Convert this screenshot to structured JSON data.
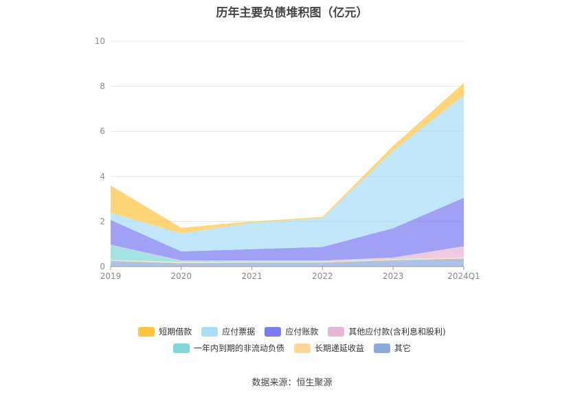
{
  "chart_data": {
    "type": "area",
    "stacked": true,
    "title": "历年主要负债堆积图（亿元）",
    "categories": [
      "2019",
      "2020",
      "2021",
      "2022",
      "2023",
      "2024Q1"
    ],
    "ylim": [
      0,
      10
    ],
    "yticks": [
      "0",
      "2",
      "4",
      "6",
      "8",
      "10"
    ],
    "grid": true,
    "legend_position": "bottom",
    "series": [
      {
        "name": "其它",
        "color": "#8eaadb",
        "values": [
          0.25,
          0.15,
          0.18,
          0.18,
          0.28,
          0.35
        ]
      },
      {
        "name": "长期递延收益",
        "color": "#fdd89a",
        "values": [
          0.05,
          0.05,
          0.05,
          0.05,
          0.05,
          0.05
        ]
      },
      {
        "name": "一年内到期的非流动负债",
        "color": "#7fd8d8",
        "values": [
          0.65,
          0.05,
          0.02,
          0.02,
          0.02,
          0.0
        ]
      },
      {
        "name": "其他应付款(含利息和股利)",
        "color": "#e8b7d8",
        "values": [
          0.02,
          0.02,
          0.02,
          0.02,
          0.05,
          0.5
        ]
      },
      {
        "name": "应付账款",
        "color": "#7b7cf0",
        "values": [
          1.1,
          0.4,
          0.5,
          0.6,
          1.3,
          2.15
        ]
      },
      {
        "name": "应付票据",
        "color": "#a9dcf7",
        "values": [
          0.33,
          0.8,
          1.18,
          1.28,
          3.45,
          4.55
        ]
      },
      {
        "name": "短期借款",
        "color": "#ffc542",
        "values": [
          1.2,
          0.25,
          0.05,
          0.05,
          0.2,
          0.55
        ]
      }
    ],
    "source": "数据来源：恒生聚源"
  }
}
